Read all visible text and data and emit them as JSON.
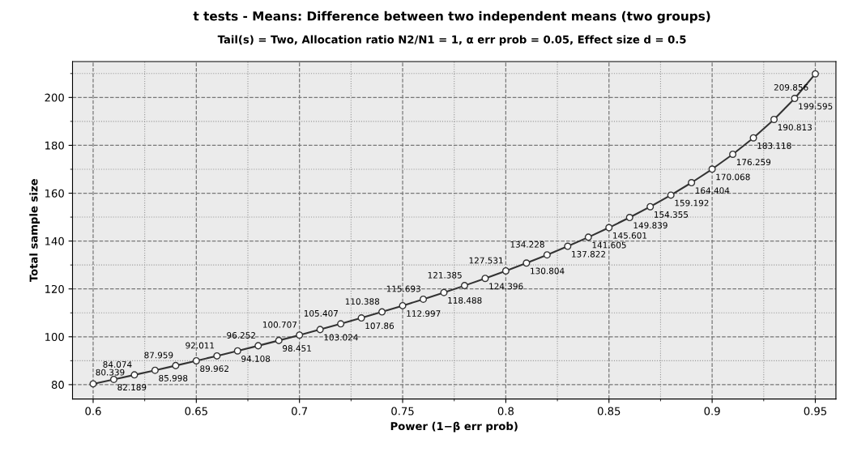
{
  "chart_data": {
    "type": "line",
    "title": "t tests - Means: Difference between two independent means (two groups)",
    "subtitle": "Tail(s) = Two, Allocation ratio N2/N1 = 1, α err prob = 0.05, Effect size d = 0.5",
    "xlabel": "Power (1−β err prob)",
    "ylabel": "Total sample size",
    "x": [
      0.6,
      0.61,
      0.62,
      0.63,
      0.64,
      0.65,
      0.66,
      0.67,
      0.68,
      0.69,
      0.7,
      0.71,
      0.72,
      0.73,
      0.74,
      0.75,
      0.76,
      0.77,
      0.78,
      0.79,
      0.8,
      0.81,
      0.82,
      0.83,
      0.84,
      0.85,
      0.86,
      0.87,
      0.88,
      0.89,
      0.9,
      0.91,
      0.92,
      0.93,
      0.94,
      0.95
    ],
    "series": [
      {
        "color": "#333333",
        "values": [
          80.339,
          82.189,
          84.074,
          85.998,
          87.959,
          89.962,
          92.011,
          94.108,
          96.252,
          98.451,
          100.707,
          103.024,
          105.407,
          107.86,
          110.388,
          112.997,
          115.693,
          118.488,
          121.385,
          124.396,
          127.531,
          130.804,
          134.228,
          137.822,
          141.605,
          145.601,
          149.839,
          154.355,
          159.192,
          164.404,
          170.068,
          176.259,
          183.118,
          190.813,
          199.595,
          209.856
        ]
      }
    ],
    "data_labels": true,
    "marker": "circle",
    "line_style": "solid",
    "grid": true,
    "xlim": [
      0.59,
      0.96
    ],
    "xticks": [
      {
        "value": 0.6,
        "label": "0.6"
      },
      {
        "value": 0.65,
        "label": "0.65"
      },
      {
        "value": 0.7,
        "label": "0.7"
      },
      {
        "value": 0.75,
        "label": "0.75"
      },
      {
        "value": 0.8,
        "label": "0.8"
      },
      {
        "value": 0.85,
        "label": "0.85"
      },
      {
        "value": 0.9,
        "label": "0.9"
      },
      {
        "value": 0.95,
        "label": "0.95"
      }
    ],
    "ylim": [
      74,
      215
    ],
    "yticks": [
      80,
      100,
      120,
      140,
      160,
      180,
      200
    ]
  }
}
